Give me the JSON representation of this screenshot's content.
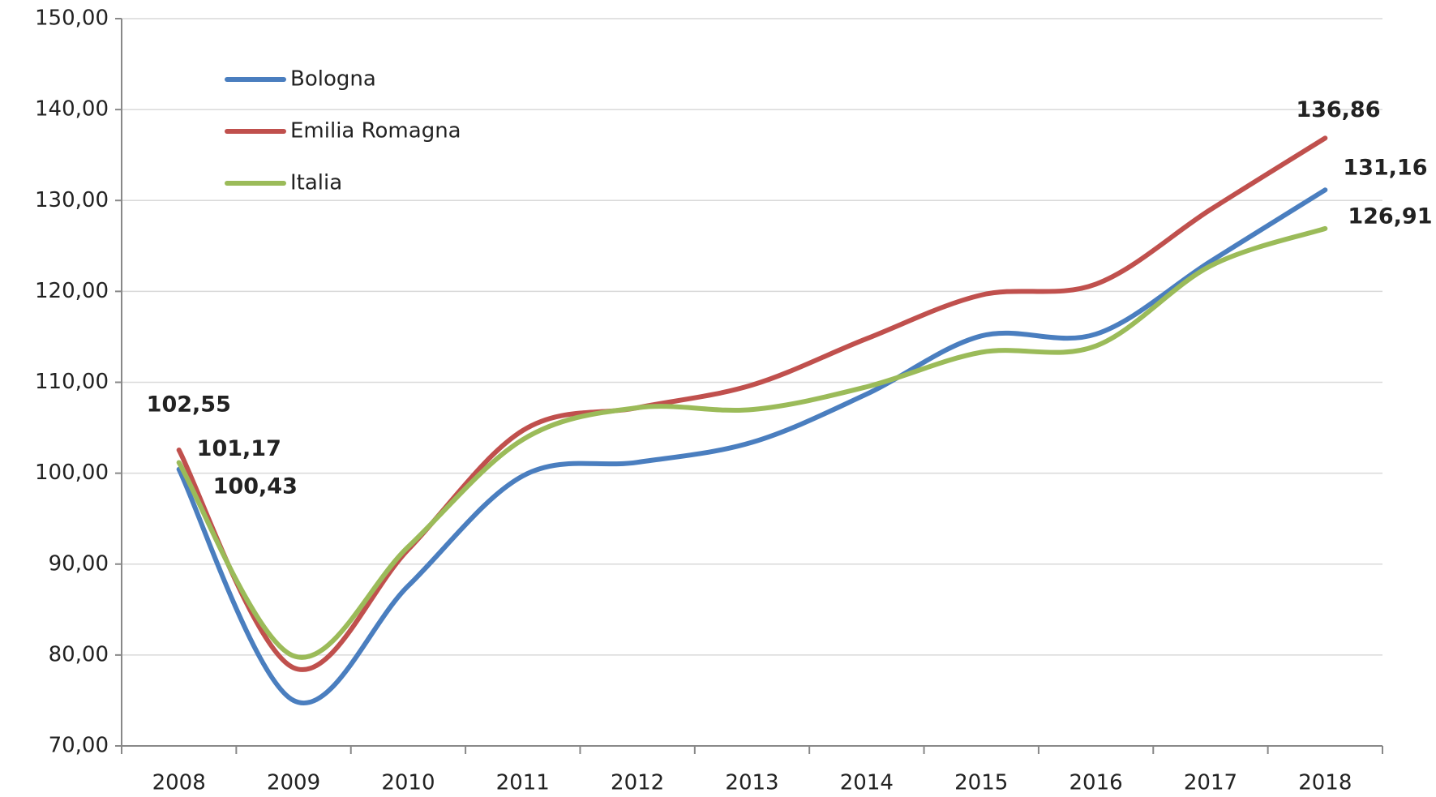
{
  "chart_data": {
    "type": "line",
    "categories": [
      "2008",
      "2009",
      "2010",
      "2011",
      "2012",
      "2013",
      "2014",
      "2015",
      "2016",
      "2017",
      "2018"
    ],
    "series": [
      {
        "name": "Bologna",
        "color": "#4a7ebf",
        "values": [
          100.43,
          75.0,
          87.6,
          99.7,
          101.2,
          103.4,
          108.7,
          115.1,
          115.3,
          123.3,
          131.16
        ],
        "value_labels": [
          "100,43",
          null,
          null,
          null,
          null,
          null,
          null,
          null,
          null,
          null,
          "131,16"
        ]
      },
      {
        "name": "Emilia Romagna",
        "color": "#c0504d",
        "values": [
          102.55,
          78.6,
          91.6,
          104.7,
          107.2,
          109.7,
          114.8,
          119.6,
          120.8,
          129.0,
          136.86
        ],
        "value_labels": [
          "102,55",
          null,
          null,
          null,
          null,
          null,
          null,
          null,
          null,
          null,
          "136,86"
        ]
      },
      {
        "name": "Italia",
        "color": "#9bbb59",
        "values": [
          101.17,
          79.9,
          91.9,
          103.7,
          107.2,
          107.0,
          109.5,
          113.3,
          114.0,
          122.8,
          126.91
        ],
        "value_labels": [
          "101,17",
          null,
          null,
          null,
          null,
          null,
          null,
          null,
          null,
          null,
          "126,91"
        ]
      }
    ],
    "ylim": [
      70,
      150
    ],
    "yticks": [
      {
        "value": 70,
        "label": "70,00"
      },
      {
        "value": 80,
        "label": "80,00"
      },
      {
        "value": 90,
        "label": "90,00"
      },
      {
        "value": 100,
        "label": "100,00"
      },
      {
        "value": 110,
        "label": "110,00"
      },
      {
        "value": 120,
        "label": "120,00"
      },
      {
        "value": 130,
        "label": "130,00"
      },
      {
        "value": 140,
        "label": "140,00"
      },
      {
        "value": 150,
        "label": "150,00"
      }
    ],
    "grid": true,
    "legend": "upper left"
  }
}
